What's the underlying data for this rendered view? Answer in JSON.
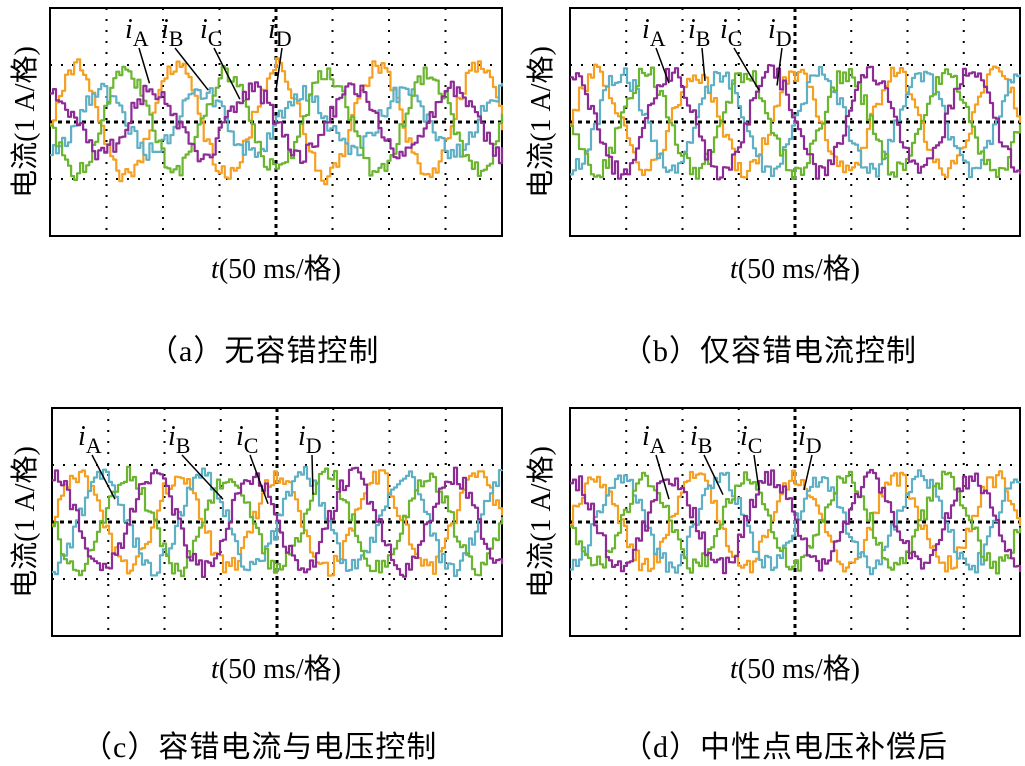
{
  "colors": {
    "A": "#f5a023",
    "B": "#5fb0c4",
    "C": "#6bb531",
    "D": "#8e2c96"
  },
  "chart_data": [
    {
      "type": "line",
      "caption": "（a）无容错控制",
      "ylabel": "电流(1 A/格)",
      "xlabel_italic": "t",
      "xlabel_rest": "(50 ms/格)",
      "grid": true,
      "series": [
        {
          "name": "iA",
          "key": "A",
          "amplitude": 1.0,
          "phase": 0.0
        },
        {
          "name": "iB",
          "key": "B",
          "amplitude": 0.55,
          "phase": 1.57
        },
        {
          "name": "iC",
          "key": "C",
          "amplitude": 0.9,
          "phase": 3.14
        },
        {
          "name": "iD",
          "key": "D",
          "amplitude": 0.6,
          "phase": 4.71
        }
      ],
      "labels": [
        {
          "base": "i",
          "sub": "A"
        },
        {
          "base": "i",
          "sub": "B"
        },
        {
          "base": "i",
          "sub": "C"
        },
        {
          "base": "i",
          "sub": "D"
        }
      ]
    },
    {
      "type": "line",
      "caption": "（b）仅容错电流控制",
      "ylabel": "电流(1 A/格)",
      "xlabel_italic": "t",
      "xlabel_rest": "(50 ms/格)",
      "grid": true,
      "series": [
        {
          "name": "iA",
          "key": "A",
          "amplitude": 0.9,
          "phase": 0.0
        },
        {
          "name": "iB",
          "key": "B",
          "amplitude": 0.9,
          "phase": 1.57
        },
        {
          "name": "iC",
          "key": "C",
          "amplitude": 0.9,
          "phase": 3.14
        },
        {
          "name": "iD",
          "key": "D",
          "amplitude": 0.9,
          "phase": 4.71
        }
      ],
      "labels": [
        {
          "base": "i",
          "sub": "A"
        },
        {
          "base": "i",
          "sub": "B"
        },
        {
          "base": "i",
          "sub": "C"
        },
        {
          "base": "i",
          "sub": "D"
        }
      ]
    },
    {
      "type": "line",
      "caption": "（c）容错电流与电压控制",
      "ylabel": "电流(1 A/格)",
      "xlabel_italic": "t",
      "xlabel_rest": "(50 ms/格)",
      "grid": true,
      "series": [
        {
          "name": "iA",
          "key": "A",
          "amplitude": 0.85,
          "phase": 0.0
        },
        {
          "name": "iB",
          "key": "B",
          "amplitude": 0.85,
          "phase": 1.57
        },
        {
          "name": "iC",
          "key": "C",
          "amplitude": 0.85,
          "phase": 3.14
        },
        {
          "name": "iD",
          "key": "D",
          "amplitude": 0.85,
          "phase": 4.71
        }
      ],
      "labels": [
        {
          "base": "i",
          "sub": "A"
        },
        {
          "base": "i",
          "sub": "B"
        },
        {
          "base": "i",
          "sub": "C"
        },
        {
          "base": "i",
          "sub": "D"
        }
      ]
    },
    {
      "type": "line",
      "caption": "（d）中性点电压补偿后",
      "ylabel": "电流(1 A/格)",
      "xlabel_italic": "t",
      "xlabel_rest": "(50 ms/格)",
      "grid": true,
      "series": [
        {
          "name": "iA",
          "key": "A",
          "amplitude": 0.8,
          "phase": 0.0
        },
        {
          "name": "iB",
          "key": "B",
          "amplitude": 0.8,
          "phase": 1.57
        },
        {
          "name": "iC",
          "key": "C",
          "amplitude": 0.8,
          "phase": 3.14
        },
        {
          "name": "iD",
          "key": "D",
          "amplitude": 0.8,
          "phase": 4.71
        }
      ],
      "labels": [
        {
          "base": "i",
          "sub": "A"
        },
        {
          "base": "i",
          "sub": "B"
        },
        {
          "base": "i",
          "sub": "C"
        },
        {
          "base": "i",
          "sub": "D"
        }
      ]
    }
  ]
}
